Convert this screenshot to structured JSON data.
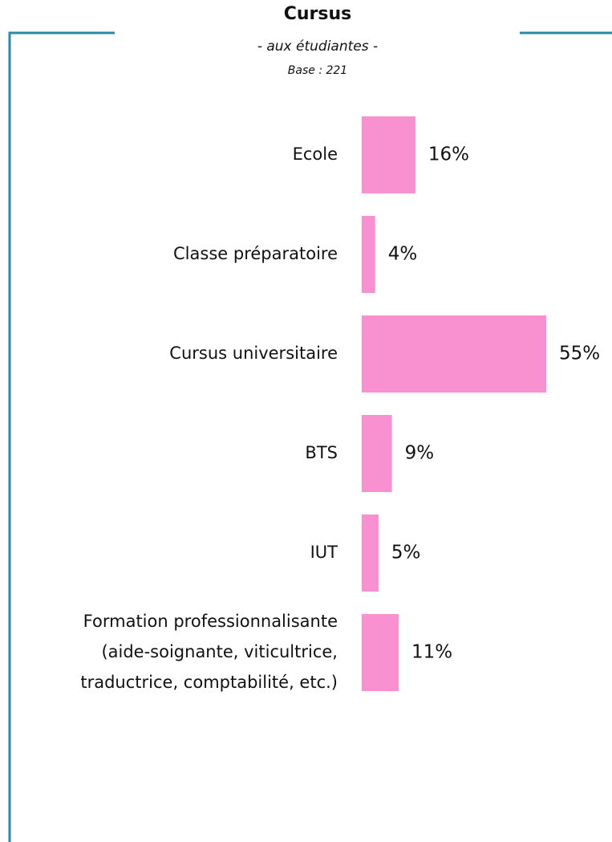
{
  "chart_data": {
    "type": "bar",
    "orientation": "horizontal",
    "title": "Cursus",
    "subtitle": "- aux étudiantes -",
    "annotation": "Base : 221",
    "categories": [
      "Ecole",
      "Classe préparatoire",
      "Cursus universitaire",
      "BTS",
      "IUT",
      "Formation professionnalisante\n(aide-soignante, viticultrice,\ntraductrice, comptabilité, etc.)"
    ],
    "values": [
      16,
      4,
      55,
      9,
      5,
      11
    ],
    "value_labels": [
      "16%",
      "4%",
      "55%",
      "9%",
      "5%",
      "11%"
    ],
    "color": "#f991d0"
  }
}
